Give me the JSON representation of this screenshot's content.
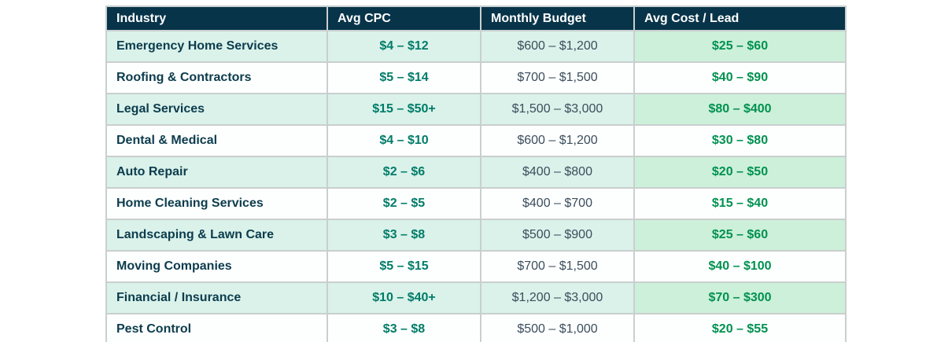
{
  "chart_data": {
    "type": "table",
    "title": "",
    "columns": [
      "Industry",
      "Avg CPC",
      "Monthly Budget",
      "Avg Cost / Lead"
    ],
    "rows": [
      [
        "Emergency Home Services",
        "$4 – $12",
        "$600 – $1,200",
        "$25 – $60"
      ],
      [
        "Roofing & Contractors",
        "$5 – $14",
        "$700 – $1,500",
        "$40 – $90"
      ],
      [
        "Legal Services",
        "$15 – $50+",
        "$1,500 – $3,000",
        "$80 – $400"
      ],
      [
        "Dental & Medical",
        "$4 – $10",
        "$600 – $1,200",
        "$30 – $80"
      ],
      [
        "Auto Repair",
        "$2 – $6",
        "$400 – $800",
        "$20 – $50"
      ],
      [
        "Home Cleaning Services",
        "$2 – $5",
        "$400 – $700",
        "$15 – $40"
      ],
      [
        "Landscaping & Lawn Care",
        "$3 – $8",
        "$500 – $900",
        "$25 – $60"
      ],
      [
        "Moving Companies",
        "$5 – $15",
        "$700 – $1,500",
        "$40 – $100"
      ],
      [
        "Financial / Insurance",
        "$10 – $40+",
        "$1,200 – $3,000",
        "$70 – $300"
      ],
      [
        "Pest Control",
        "$3 – $8",
        "$500 – $1,000",
        "$20 – $55"
      ]
    ],
    "layout": {
      "striping": "odd rows tinted mint; Avg Cost / Lead column tinted green on those rows",
      "grid": true
    }
  },
  "colors": {
    "header_bg": "#073449",
    "header_text": "#ffffff",
    "border": "#c9cfce",
    "border_bottom": "#b9c0bf",
    "row_default": "#fdfffe",
    "row_alt": "#daf2ea",
    "lead_alt": "#cdf0da",
    "industry_text": "#0c3c4d",
    "cpc_text": "#007c68",
    "budget_text": "#3c4d5c",
    "lead_text": "#009150"
  }
}
